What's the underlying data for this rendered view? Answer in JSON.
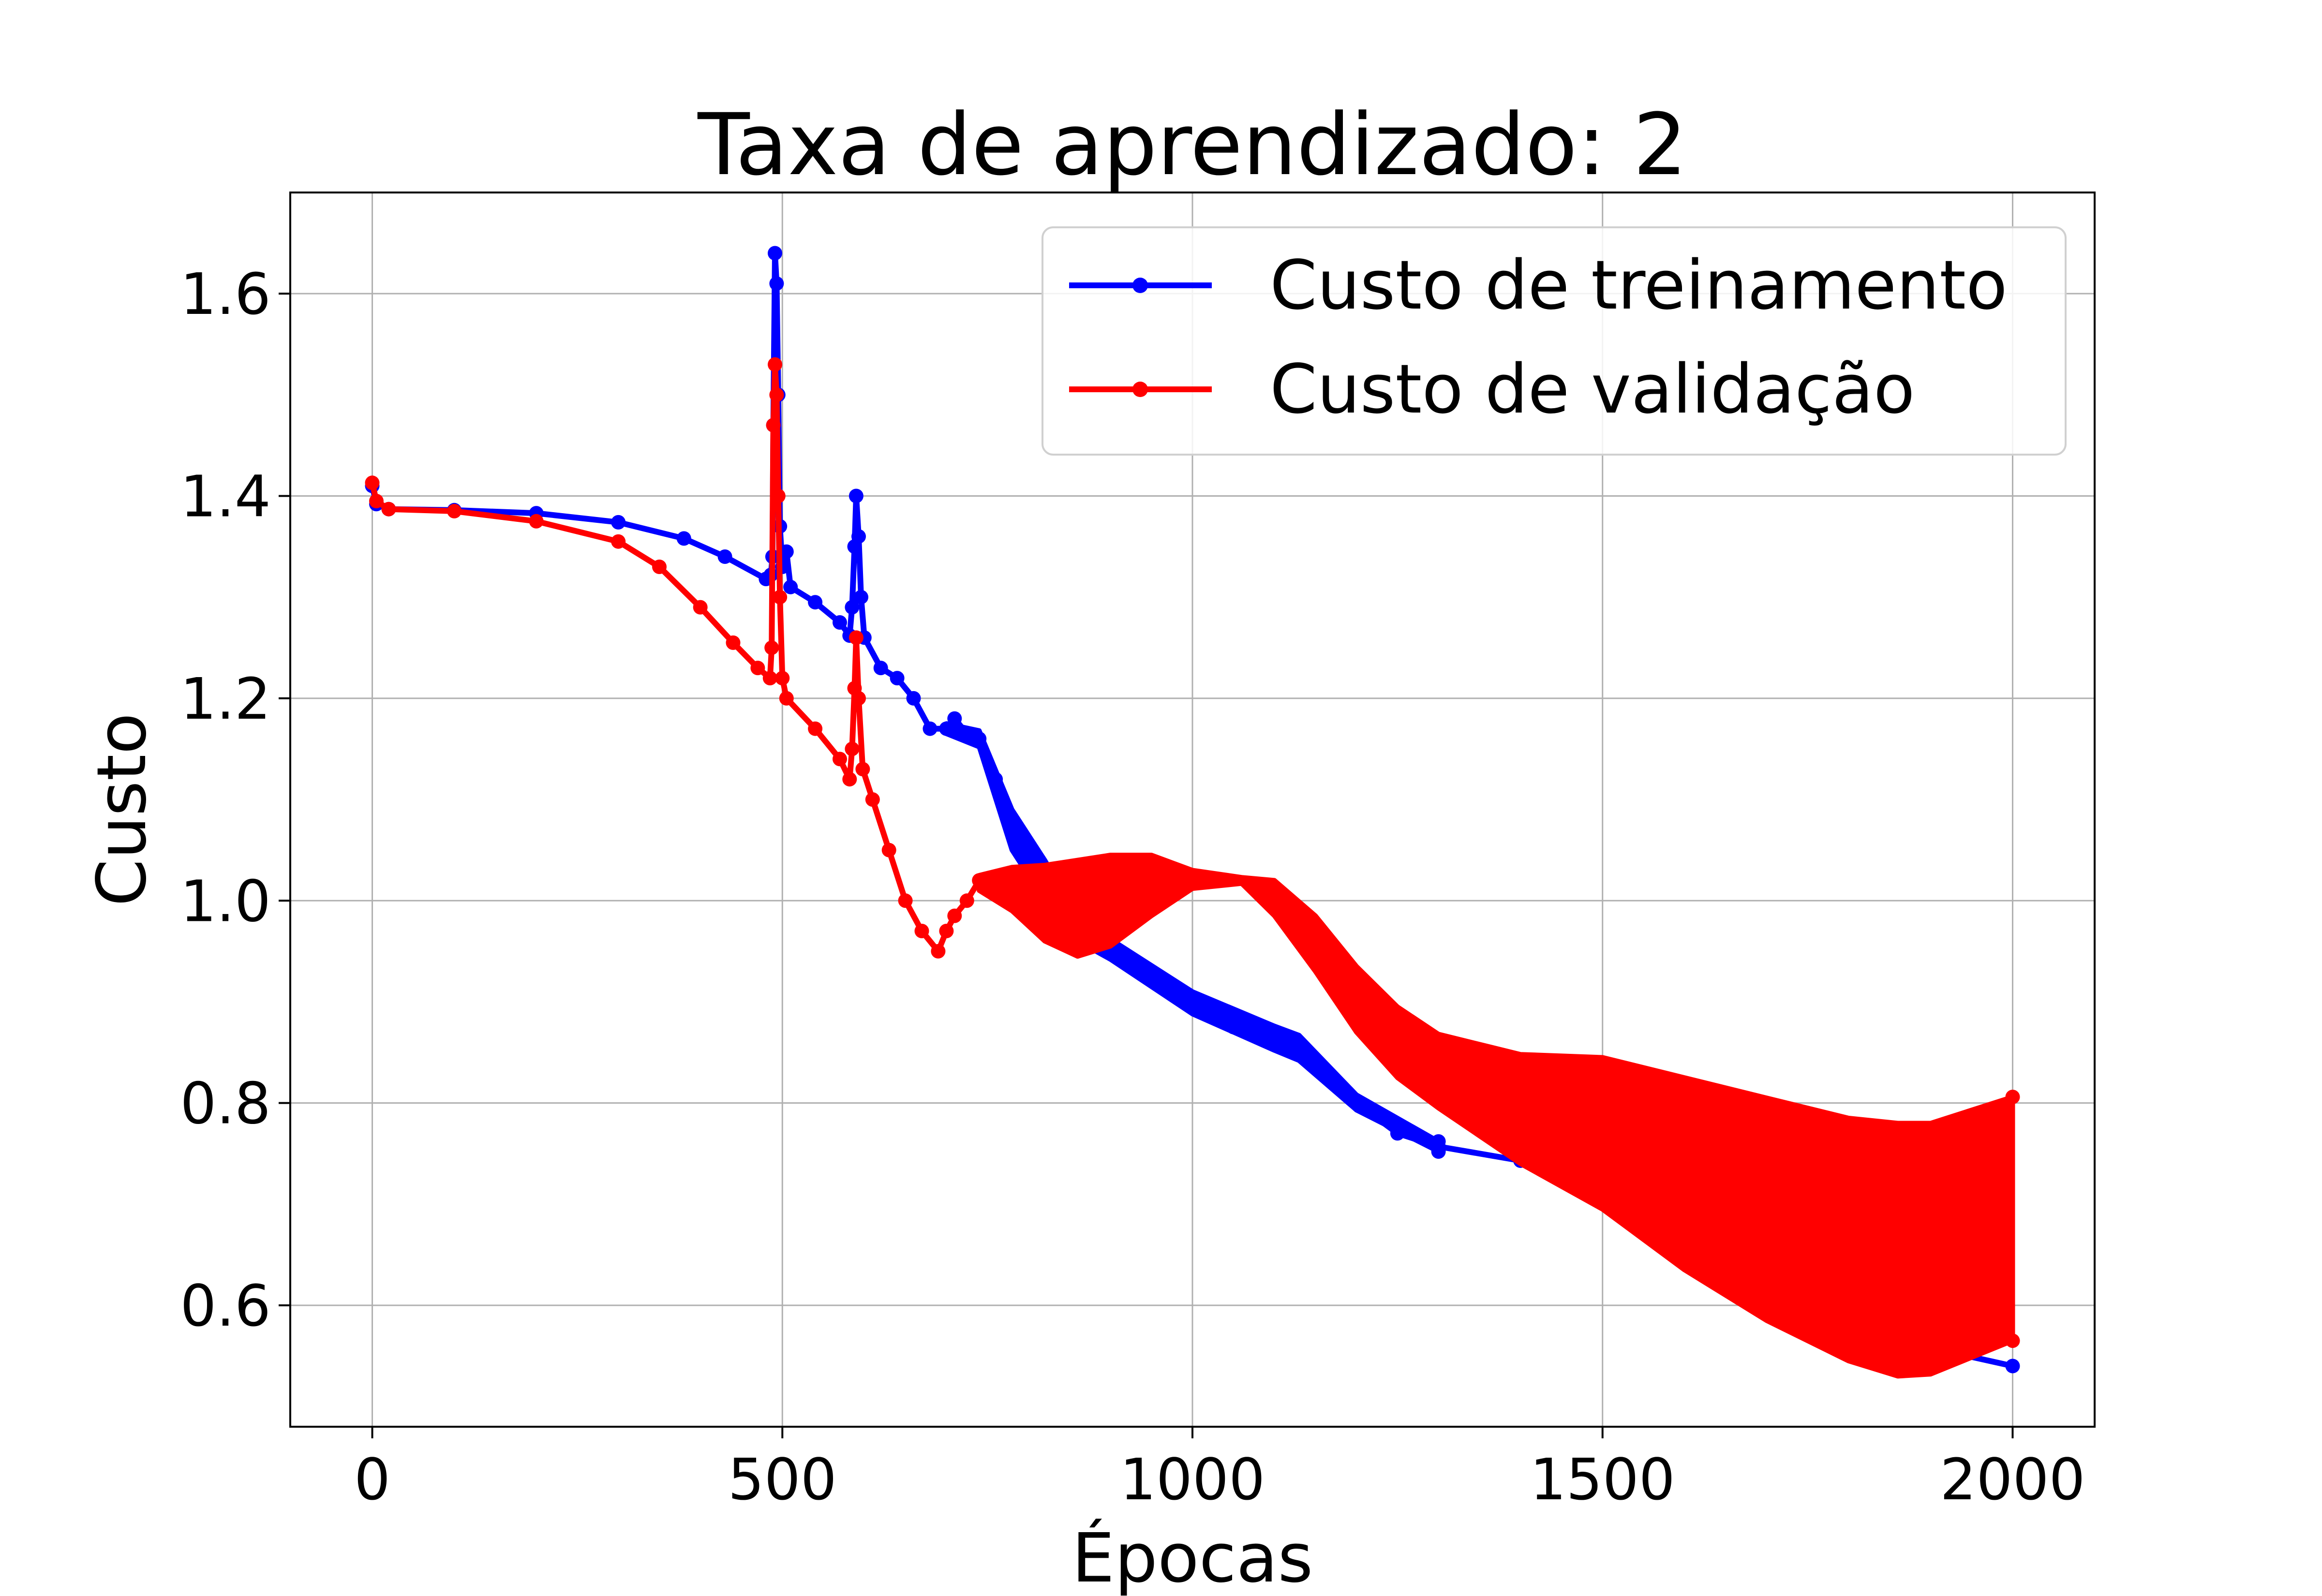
{
  "chart_data": {
    "type": "line",
    "title": "Taxa de aprendizado: 2",
    "xlabel": "Épocas",
    "ylabel": "Custo",
    "xlim": [
      -100,
      2100
    ],
    "ylim": [
      0.48,
      1.7
    ],
    "xticks": [
      0,
      500,
      1000,
      1500,
      2000
    ],
    "yticks": [
      0.6,
      0.8,
      1.0,
      1.2,
      1.4,
      1.6
    ],
    "xtick_labels": [
      "0",
      "500",
      "1000",
      "1500",
      "2000"
    ],
    "ytick_labels": [
      "0.6",
      "0.8",
      "1.0",
      "1.2",
      "1.4",
      "1.6"
    ],
    "grid": true,
    "legend_position": "top-right",
    "series": [
      {
        "name": "Custo de treinamento",
        "color": "#0000ff",
        "markers": true,
        "center": [
          [
            0,
            1.41
          ],
          [
            5,
            1.392
          ],
          [
            20,
            1.387
          ],
          [
            100,
            1.386
          ],
          [
            200,
            1.383
          ],
          [
            300,
            1.374
          ],
          [
            380,
            1.358
          ],
          [
            430,
            1.34
          ],
          [
            480,
            1.318
          ],
          [
            486,
            1.322
          ],
          [
            488,
            1.34
          ],
          [
            489,
            1.47
          ],
          [
            491,
            1.64
          ],
          [
            493,
            1.61
          ],
          [
            495,
            1.5
          ],
          [
            497,
            1.37
          ],
          [
            500,
            1.33
          ],
          [
            505,
            1.345
          ],
          [
            510,
            1.31
          ],
          [
            540,
            1.295
          ],
          [
            570,
            1.275
          ],
          [
            582,
            1.262
          ],
          [
            585,
            1.29
          ],
          [
            588,
            1.35
          ],
          [
            590,
            1.4
          ],
          [
            593,
            1.36
          ],
          [
            596,
            1.3
          ],
          [
            600,
            1.26
          ],
          [
            620,
            1.23
          ],
          [
            640,
            1.22
          ],
          [
            660,
            1.2
          ],
          [
            680,
            1.17
          ],
          [
            700,
            1.17
          ],
          [
            710,
            1.18
          ],
          [
            725,
            1.165
          ],
          [
            740,
            1.16
          ],
          [
            760,
            1.12
          ],
          [
            790,
            1.06
          ],
          [
            820,
            1.02
          ],
          [
            860,
            0.97
          ],
          [
            900,
            0.95
          ],
          [
            950,
            0.93
          ],
          [
            1000,
            0.9
          ],
          [
            1050,
            0.875
          ],
          [
            1100,
            0.865
          ],
          [
            1130,
            0.855
          ],
          [
            1160,
            0.83
          ],
          [
            1200,
            0.8
          ],
          [
            1250,
            0.77
          ],
          [
            1300,
            0.757
          ],
          [
            1400,
            0.743
          ],
          [
            1500,
            0.725
          ],
          [
            1600,
            0.665
          ],
          [
            1700,
            0.605
          ],
          [
            1800,
            0.575
          ],
          [
            1900,
            0.558
          ],
          [
            2000,
            0.54
          ]
        ],
        "band": [
          [
            700,
            1.175,
            1.165
          ],
          [
            740,
            1.168,
            1.152
          ],
          [
            780,
            1.09,
            1.05
          ],
          [
            820,
            1.04,
            1.0
          ],
          [
            860,
            0.985,
            0.96
          ],
          [
            900,
            0.962,
            0.942
          ],
          [
            1000,
            0.91,
            0.888
          ],
          [
            1100,
            0.876,
            0.852
          ],
          [
            1130,
            0.867,
            0.842
          ],
          [
            1200,
            0.808,
            0.793
          ],
          [
            1300,
            0.762,
            0.752
          ]
        ]
      },
      {
        "name": "Custo de validação",
        "color": "#ff0000",
        "markers": true,
        "center": [
          [
            0,
            1.413
          ],
          [
            5,
            1.395
          ],
          [
            20,
            1.387
          ],
          [
            100,
            1.385
          ],
          [
            200,
            1.375
          ],
          [
            300,
            1.355
          ],
          [
            350,
            1.33
          ],
          [
            400,
            1.29
          ],
          [
            440,
            1.255
          ],
          [
            470,
            1.23
          ],
          [
            485,
            1.22
          ],
          [
            487,
            1.25
          ],
          [
            489,
            1.47
          ],
          [
            491,
            1.53
          ],
          [
            493,
            1.5
          ],
          [
            495,
            1.4
          ],
          [
            497,
            1.3
          ],
          [
            500,
            1.22
          ],
          [
            505,
            1.2
          ],
          [
            540,
            1.17
          ],
          [
            570,
            1.14
          ],
          [
            582,
            1.12
          ],
          [
            585,
            1.15
          ],
          [
            588,
            1.21
          ],
          [
            590,
            1.26
          ],
          [
            593,
            1.2
          ],
          [
            598,
            1.13
          ],
          [
            610,
            1.1
          ],
          [
            630,
            1.05
          ],
          [
            650,
            1.0
          ],
          [
            670,
            0.97
          ],
          [
            690,
            0.95
          ],
          [
            700,
            0.97
          ],
          [
            710,
            0.985
          ],
          [
            725,
            1.0
          ],
          [
            740,
            1.02
          ]
        ],
        "band": [
          [
            740,
            1.025,
            1.01
          ],
          [
            780,
            1.033,
            0.99
          ],
          [
            820,
            1.035,
            0.96
          ],
          [
            860,
            1.04,
            0.945
          ],
          [
            900,
            1.045,
            0.955
          ],
          [
            950,
            1.045,
            0.985
          ],
          [
            1000,
            1.03,
            1.012
          ],
          [
            1060,
            1.023,
            1.017
          ],
          [
            1100,
            1.02,
            0.985
          ],
          [
            1150,
            0.985,
            0.93
          ],
          [
            1200,
            0.935,
            0.87
          ],
          [
            1250,
            0.895,
            0.825
          ],
          [
            1300,
            0.868,
            0.795
          ],
          [
            1400,
            0.848,
            0.74
          ],
          [
            1500,
            0.845,
            0.695
          ],
          [
            1600,
            0.825,
            0.635
          ],
          [
            1700,
            0.805,
            0.585
          ],
          [
            1800,
            0.785,
            0.545
          ],
          [
            1860,
            0.78,
            0.53
          ],
          [
            1900,
            0.78,
            0.532
          ],
          [
            2000,
            0.806,
            0.565
          ]
        ]
      }
    ]
  }
}
